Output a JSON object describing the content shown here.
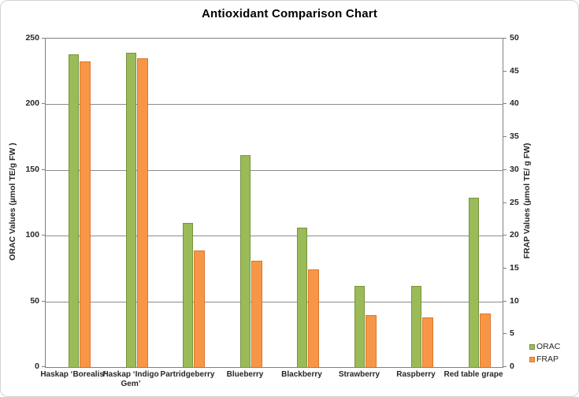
{
  "window": {
    "title": "Antioxidant Comparison Chart"
  },
  "chart_data": {
    "type": "bar",
    "title": "Antioxidant Comparison Chart",
    "categories": [
      "Haskap ‘Borealis’",
      "Haskap ‘Indigo Gem’",
      "Partridgeberry",
      "Blueberry",
      "Blackberry",
      "Strawberry",
      "Raspberry",
      "Red table grape"
    ],
    "series": [
      {
        "name": "ORAC",
        "axis": "left",
        "color": "#9BBB59",
        "border_color": "#77933C",
        "values": [
          238,
          239,
          110,
          161,
          106,
          62,
          62,
          129
        ]
      },
      {
        "name": "FRAP",
        "axis": "right",
        "color": "#F79646",
        "border_color": "#D9782D",
        "values": [
          46.5,
          47,
          17.8,
          16.2,
          14.9,
          7.9,
          7.6,
          8.1
        ]
      }
    ],
    "left_axis": {
      "label": "ORAC Values (µmol TE/g FW )",
      "min": 0,
      "max": 250,
      "tick_step": 50,
      "tick_labels": [
        "0",
        "50",
        "100",
        "150",
        "200",
        "250"
      ]
    },
    "right_axis": {
      "label": "FRAP Values (µmol TE/ g FW)",
      "min": 0,
      "max": 50,
      "tick_step": 5,
      "tick_labels": [
        "0",
        "5",
        "10",
        "15",
        "20",
        "25",
        "30",
        "35",
        "40",
        "45",
        "50"
      ]
    },
    "gridline_values": [
      50,
      100,
      150,
      200
    ],
    "grid": true,
    "legend": {
      "position": "bottom-right",
      "entries": [
        "ORAC",
        "FRAP"
      ]
    }
  },
  "colors": {
    "background": "#FFFFFF",
    "gridline": "#8C8C8C",
    "axis_border": "#808080",
    "text": "#262626",
    "title_text": "#000000"
  }
}
